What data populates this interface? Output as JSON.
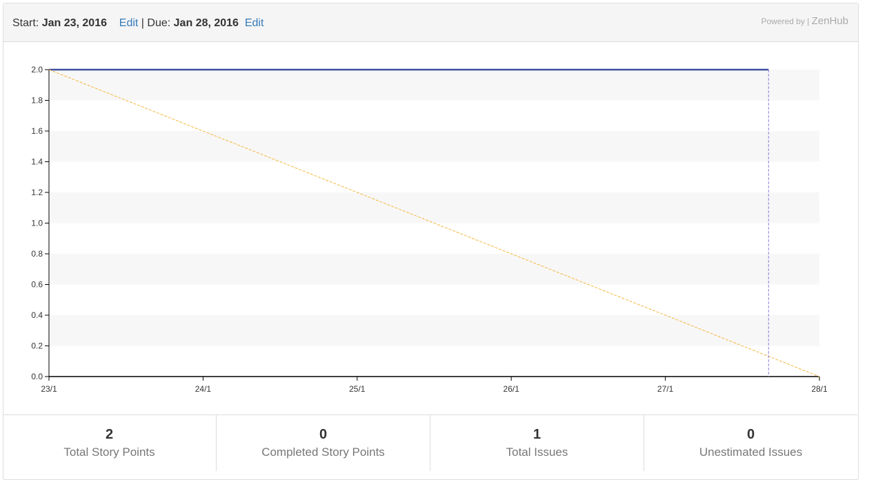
{
  "header": {
    "start_label": "Start:",
    "start_date": "Jan 23, 2016",
    "edit_label": "Edit",
    "separator": "|",
    "due_label": "Due:",
    "due_date": "Jan 28, 2016",
    "powered_by": "Powered by |",
    "brand": "ZenHub"
  },
  "chart_data": {
    "type": "line",
    "title": "",
    "xlabel": "",
    "ylabel": "",
    "x_ticks": [
      "23/1",
      "24/1",
      "25/1",
      "26/1",
      "27/1",
      "28/1"
    ],
    "y_ticks": [
      "0.0",
      "0.2",
      "0.4",
      "0.6",
      "0.8",
      "1.0",
      "1.2",
      "1.4",
      "1.6",
      "1.8",
      "2.0"
    ],
    "xlim": [
      0,
      5
    ],
    "ylim": [
      0,
      2
    ],
    "series": [
      {
        "points": [
          [
            0,
            2
          ],
          [
            4.67,
            2
          ]
        ],
        "color": "#3f4d9f",
        "dashed": false
      },
      {
        "points": [
          [
            0,
            2
          ],
          [
            5,
            0
          ]
        ],
        "color": "#f6b63c",
        "dashed": true
      }
    ],
    "today_marker": {
      "x": 4.67,
      "color": "#8b7fd8"
    },
    "grid": "alternating horizontal bands"
  },
  "stats": [
    {
      "value": "2",
      "label": "Total Story Points"
    },
    {
      "value": "0",
      "label": "Completed Story Points"
    },
    {
      "value": "1",
      "label": "Total Issues"
    },
    {
      "value": "0",
      "label": "Unestimated Issues"
    }
  ]
}
